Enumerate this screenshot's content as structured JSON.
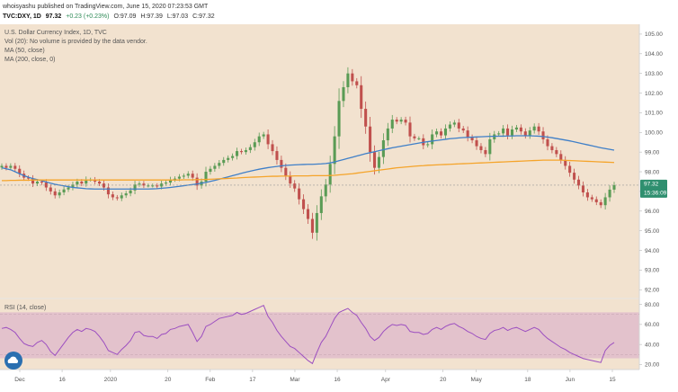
{
  "header": {
    "publisher_line": "whoisyashu published on TradingView.com, June 15, 2020 07:23:53 GMT",
    "symbol": "TVC:DXY, 1D",
    "last": "97.32",
    "change": "+0.23 (+0.23%)",
    "open": "O:97.09",
    "high": "H:97.39",
    "low": "L:97.03",
    "close": "C:97.32"
  },
  "legend": {
    "title": "U.S. Dollar Currency Index, 1D, TVC",
    "vol": "Vol (20): No volume is provided by the data vendor.",
    "ma50": "MA (50, close)",
    "ma200": "MA (200, close, 0)",
    "rsi": "RSI (14, close)"
  },
  "price_tags": {
    "last": "97.32",
    "countdown": "15:36:09"
  },
  "colors": {
    "background": "#f2e2cf",
    "up_candle": "#5a9b55",
    "down_candle": "#c0504d",
    "ma50": "#3f7fc8",
    "ma200": "#f5a42a",
    "rsi_line": "#9c4fc0",
    "rsi_band": "#e3c2cc",
    "last_price_tag": "#2f8f6f",
    "logo": "#2a6fb0"
  },
  "logo_icon": "cloud-icon",
  "chart_data": [
    {
      "type": "candlestick",
      "title": "U.S. Dollar Currency Index, 1D, TVC",
      "y_axis": {
        "position": "right",
        "ylim": [
          91.6,
          105.5
        ],
        "ticks": [
          "105.00",
          "104.00",
          "103.00",
          "102.00",
          "101.00",
          "100.00",
          "99.00",
          "98.00",
          "97.00",
          "96.00",
          "95.00",
          "94.00",
          "93.00",
          "92.00"
        ]
      },
      "x_axis": {
        "ticks": [
          {
            "label": "Dec",
            "date": "2019-12-02"
          },
          {
            "label": "16",
            "date": "2019-12-16"
          },
          {
            "label": "2020",
            "date": "2020-01-01"
          },
          {
            "label": "20",
            "date": "2020-01-20"
          },
          {
            "label": "Feb",
            "date": "2020-02-03"
          },
          {
            "label": "17",
            "date": "2020-02-17"
          },
          {
            "label": "Mar",
            "date": "2020-03-02"
          },
          {
            "label": "16",
            "date": "2020-03-16"
          },
          {
            "label": "Apr",
            "date": "2020-04-01"
          },
          {
            "label": "20",
            "date": "2020-04-20"
          },
          {
            "label": "May",
            "date": "2020-05-01"
          },
          {
            "label": "18",
            "date": "2020-05-18"
          },
          {
            "label": "Jun",
            "date": "2020-06-01"
          },
          {
            "label": "15",
            "date": "2020-06-15"
          }
        ]
      },
      "closes": [
        98.3,
        98.2,
        98.3,
        98.15,
        97.9,
        97.7,
        97.65,
        97.4,
        97.5,
        97.45,
        97.2,
        97.0,
        96.8,
        96.95,
        97.1,
        97.2,
        97.35,
        97.5,
        97.4,
        97.6,
        97.6,
        97.5,
        97.4,
        97.2,
        96.85,
        96.7,
        96.65,
        96.8,
        96.9,
        97.05,
        97.35,
        97.4,
        97.3,
        97.3,
        97.3,
        97.25,
        97.4,
        97.45,
        97.6,
        97.65,
        97.75,
        97.8,
        97.9,
        97.7,
        97.3,
        97.5,
        98.0,
        98.15,
        98.3,
        98.45,
        98.6,
        98.7,
        98.8,
        99.05,
        99.0,
        99.1,
        99.25,
        99.5,
        99.8,
        99.9,
        99.4,
        99.05,
        98.6,
        98.2,
        97.8,
        97.4,
        97.15,
        96.6,
        96.1,
        95.6,
        94.9,
        95.9,
        96.75,
        97.35,
        98.4,
        99.8,
        101.6,
        102.3,
        103.0,
        102.6,
        102.4,
        101.2,
        100.3,
        99.0,
        98.2,
        98.75,
        99.6,
        100.2,
        100.65,
        100.55,
        100.65,
        100.5,
        99.8,
        99.7,
        99.7,
        99.35,
        99.4,
        99.9,
        100.05,
        99.85,
        100.2,
        100.4,
        100.5,
        100.2,
        100.1,
        99.75,
        99.6,
        99.3,
        99.1,
        98.9,
        99.65,
        99.9,
        99.95,
        100.2,
        99.85,
        100.15,
        100.25,
        100.05,
        99.85,
        100.1,
        100.3,
        100.05,
        99.65,
        99.3,
        99.1,
        98.9,
        98.6,
        98.3,
        97.95,
        97.6,
        97.3,
        96.95,
        96.7,
        96.6,
        96.45,
        96.3,
        96.7,
        97.09,
        97.32
      ],
      "moving_averages": [
        {
          "name": "MA (50, close)",
          "values": [
            98.2,
            98.15,
            98.1,
            98.0,
            97.9,
            97.8,
            97.72,
            97.65,
            97.6,
            97.55,
            97.48,
            97.42,
            97.36,
            97.32,
            97.28,
            97.24,
            97.2,
            97.18,
            97.16,
            97.14,
            97.13,
            97.12,
            97.12,
            97.12,
            97.12,
            97.12,
            97.12,
            97.12,
            97.12,
            97.12,
            97.12,
            97.12,
            97.12,
            97.12,
            97.13,
            97.14,
            97.16,
            97.18,
            97.2,
            97.23,
            97.26,
            97.29,
            97.32,
            97.35,
            97.38,
            97.42,
            97.46,
            97.51,
            97.56,
            97.62,
            97.68,
            97.74,
            97.8,
            97.86,
            97.92,
            97.98,
            98.03,
            98.08,
            98.13,
            98.17,
            98.21,
            98.24,
            98.27,
            98.3,
            98.32,
            98.34,
            98.35,
            98.36,
            98.37,
            98.38,
            98.38,
            98.39,
            98.4,
            98.42,
            98.45,
            98.5,
            98.56,
            98.62,
            98.68,
            98.74,
            98.8,
            98.86,
            98.92,
            98.97,
            99.02,
            99.07,
            99.12,
            99.17,
            99.22,
            99.26,
            99.3,
            99.34,
            99.38,
            99.42,
            99.46,
            99.5,
            99.53,
            99.56,
            99.59,
            99.62,
            99.65,
            99.68,
            99.7,
            99.72,
            99.74,
            99.75,
            99.76,
            99.77,
            99.78,
            99.79,
            99.8,
            99.8,
            99.81,
            99.81,
            99.82,
            99.82,
            99.83,
            99.83,
            99.83,
            99.83,
            99.82,
            99.81,
            99.79,
            99.76,
            99.73,
            99.69,
            99.65,
            99.61,
            99.57,
            99.52,
            99.47,
            99.42,
            99.37,
            99.32,
            99.27,
            99.22,
            99.18,
            99.14,
            99.1
          ]
        },
        {
          "name": "MA (200, close, 0)",
          "values": [
            97.55,
            97.55,
            97.56,
            97.56,
            97.57,
            97.57,
            97.57,
            97.58,
            97.58,
            97.58,
            97.58,
            97.58,
            97.58,
            97.58,
            97.58,
            97.58,
            97.58,
            97.58,
            97.58,
            97.58,
            97.58,
            97.58,
            97.58,
            97.58,
            97.58,
            97.58,
            97.58,
            97.58,
            97.58,
            97.58,
            97.58,
            97.58,
            97.58,
            97.58,
            97.58,
            97.58,
            97.58,
            97.58,
            97.58,
            97.58,
            97.58,
            97.59,
            97.59,
            97.59,
            97.6,
            97.6,
            97.61,
            97.62,
            97.63,
            97.64,
            97.65,
            97.66,
            97.67,
            97.68,
            97.7,
            97.71,
            97.72,
            97.73,
            97.74,
            97.75,
            97.76,
            97.77,
            97.77,
            97.78,
            97.78,
            97.78,
            97.79,
            97.79,
            97.79,
            97.79,
            97.8,
            97.8,
            97.8,
            97.8,
            97.81,
            97.82,
            97.84,
            97.86,
            97.88,
            97.9,
            97.93,
            97.96,
            97.99,
            98.02,
            98.05,
            98.08,
            98.11,
            98.14,
            98.17,
            98.2,
            98.22,
            98.24,
            98.26,
            98.28,
            98.3,
            98.31,
            98.33,
            98.34,
            98.35,
            98.36,
            98.37,
            98.38,
            98.39,
            98.4,
            98.41,
            98.42,
            98.43,
            98.44,
            98.45,
            98.46,
            98.47,
            98.48,
            98.49,
            98.5,
            98.51,
            98.52,
            98.53,
            98.54,
            98.55,
            98.56,
            98.57,
            98.58,
            98.59,
            98.59,
            98.59,
            98.59,
            98.59,
            98.58,
            98.57,
            98.56,
            98.55,
            98.54,
            98.53,
            98.52,
            98.51,
            98.5,
            98.49,
            98.48,
            98.47
          ]
        }
      ],
      "last_price": 97.32
    },
    {
      "type": "line",
      "title": "RSI (14, close)",
      "y_axis": {
        "position": "right",
        "ylim": [
          15,
          85
        ],
        "ticks": [
          "80.00",
          "60.00",
          "40.00",
          "20.00"
        ]
      },
      "band": [
        30,
        70
      ],
      "series": [
        {
          "name": "RSI (14, close)",
          "values": [
            56,
            57,
            55,
            52,
            46,
            41,
            39,
            38,
            42,
            44,
            40,
            33,
            29,
            35,
            41,
            47,
            52,
            55,
            53,
            56,
            55,
            53,
            48,
            42,
            34,
            32,
            30,
            35,
            39,
            44,
            52,
            53,
            49,
            48,
            48,
            46,
            50,
            51,
            55,
            56,
            58,
            59,
            60,
            52,
            43,
            48,
            58,
            60,
            63,
            66,
            67,
            68,
            69,
            72,
            70,
            71,
            73,
            75,
            77,
            79,
            68,
            62,
            54,
            48,
            43,
            38,
            36,
            32,
            28,
            24,
            21,
            32,
            42,
            48,
            57,
            66,
            72,
            74,
            76,
            72,
            69,
            62,
            56,
            48,
            44,
            47,
            53,
            57,
            60,
            59,
            60,
            59,
            53,
            52,
            52,
            50,
            51,
            55,
            57,
            55,
            58,
            60,
            61,
            58,
            56,
            53,
            51,
            48,
            46,
            45,
            51,
            54,
            55,
            57,
            54,
            56,
            57,
            55,
            53,
            55,
            57,
            55,
            50,
            46,
            43,
            40,
            37,
            35,
            32,
            30,
            28,
            26,
            25,
            24,
            23,
            22,
            34,
            39,
            42
          ]
        }
      ]
    }
  ]
}
